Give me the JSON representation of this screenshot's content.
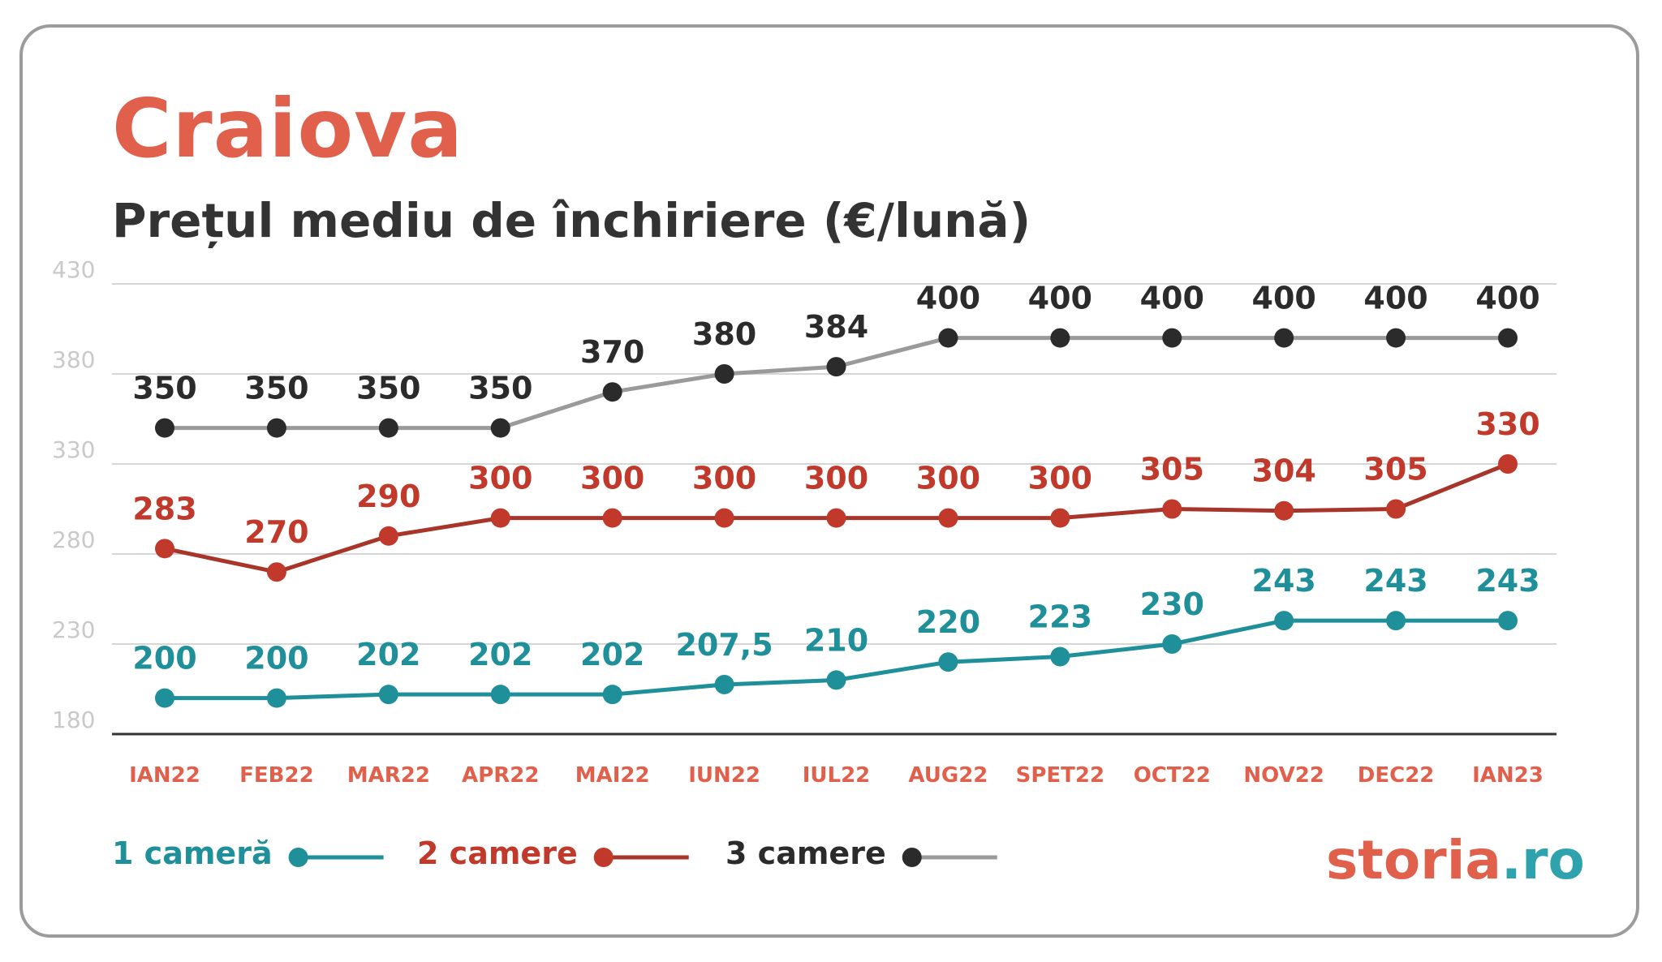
{
  "title": "Craiova",
  "subtitle": "Prețul mediu de închiriere (€/lună)",
  "logo": {
    "part1": "storia",
    "part2": ".ro",
    "color1": "#e0604c",
    "color2": "#2ea3ad"
  },
  "chart_data": {
    "type": "line",
    "categories": [
      "IAN22",
      "FEB22",
      "MAR22",
      "APR22",
      "MAI22",
      "IUN22",
      "IUL22",
      "AUG22",
      "SPET22",
      "OCT22",
      "NOV22",
      "DEC22",
      "IAN23"
    ],
    "ylim": [
      180,
      430
    ],
    "yticks": [
      180,
      230,
      280,
      330,
      380,
      430
    ],
    "grid": true,
    "legend_position": "bottom-left",
    "series": [
      {
        "name": "1 cameră",
        "color": "#1f8f99",
        "line_color": "#1f8f99",
        "label_color": "#1f8f99",
        "values": [
          200,
          200,
          202,
          202,
          202,
          207.5,
          210,
          220,
          223,
          230,
          243,
          243,
          243
        ],
        "labels": [
          "200",
          "200",
          "202",
          "202",
          "202",
          "207,5",
          "210",
          "220",
          "223",
          "230",
          "243",
          "243",
          "243"
        ]
      },
      {
        "name": "2 camere",
        "color": "#c0392b",
        "line_color": "#a8352a",
        "label_color": "#c0392b",
        "values": [
          283,
          270,
          290,
          300,
          300,
          300,
          300,
          300,
          300,
          305,
          304,
          305,
          330
        ],
        "labels": [
          "283",
          "270",
          "290",
          "300",
          "300",
          "300",
          "300",
          "300",
          "300",
          "305",
          "304",
          "305",
          "330"
        ]
      },
      {
        "name": "3 camere",
        "color": "#2b2b2b",
        "line_color": "#9a9a9a",
        "label_color": "#2b2b2b",
        "values": [
          350,
          350,
          350,
          350,
          370,
          380,
          384,
          400,
          400,
          400,
          400,
          400,
          400
        ],
        "labels": [
          "350",
          "350",
          "350",
          "350",
          "370",
          "380",
          "384",
          "400",
          "400",
          "400",
          "400",
          "400",
          "400"
        ]
      }
    ]
  }
}
